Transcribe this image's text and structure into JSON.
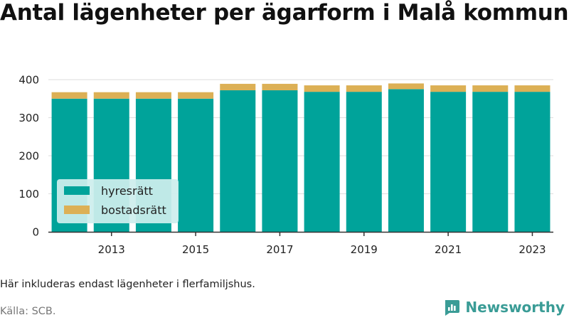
{
  "title": "Antal lägenheter per ägarform i Malå kommun",
  "note": "Här inkluderas endast lägenheter i flerfamiljshus.",
  "source": "Källa: SCB.",
  "brand": "Newsworthy",
  "colors": {
    "hyresratt": "#00a39a",
    "bostadsratt": "#dcb055",
    "grid": "#dddddd",
    "axis": "#333333",
    "legend_bg": "#cdeeed"
  },
  "chart_data": {
    "type": "bar",
    "stacked": true,
    "categories": [
      "2012",
      "2013",
      "2014",
      "2015",
      "2016",
      "2017",
      "2018",
      "2019",
      "2020",
      "2021",
      "2022",
      "2023"
    ],
    "x_tick_labels": [
      "2013",
      "2015",
      "2017",
      "2019",
      "2021",
      "2023"
    ],
    "series": [
      {
        "name": "hyresrätt",
        "values": [
          350,
          350,
          350,
          350,
          372,
          372,
          368,
          368,
          375,
          368,
          368,
          368
        ]
      },
      {
        "name": "bostadsrätt",
        "values": [
          17,
          17,
          17,
          17,
          17,
          17,
          17,
          17,
          15,
          17,
          17,
          17
        ]
      }
    ],
    "ylim": [
      0,
      400
    ],
    "y_ticks": [
      0,
      100,
      200,
      300,
      400
    ],
    "grid": true,
    "legend_placement": "bottom-left"
  }
}
